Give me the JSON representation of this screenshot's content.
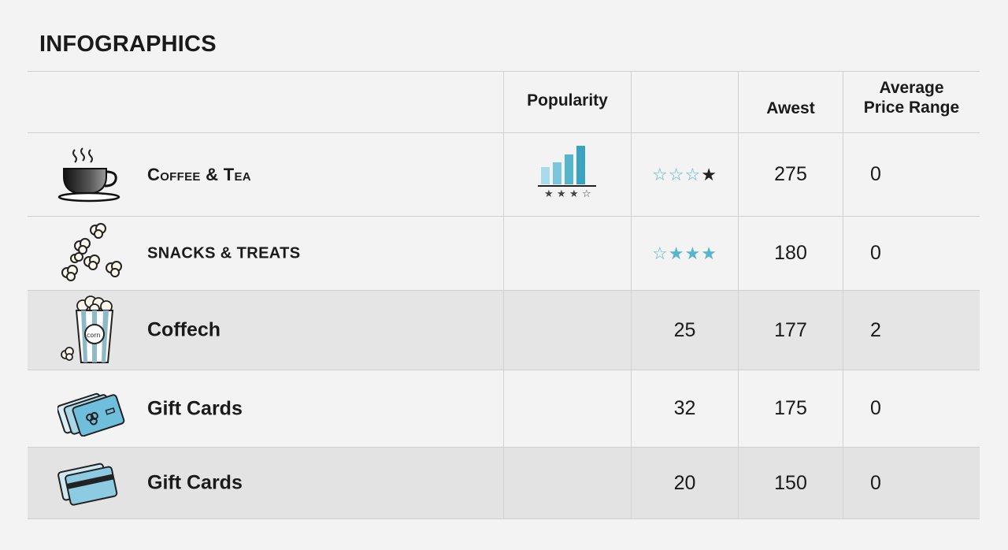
{
  "title": "INFOGRAPHICS",
  "headers": {
    "category": "",
    "popularity": "Popularity",
    "col3": "",
    "awest": "Awest",
    "avg_price_line1": "Average",
    "avg_price_line2": "Price Range"
  },
  "rows": [
    {
      "label": "Coffee & Tea",
      "icon": "coffee-cup-icon",
      "popularity_icon": "bar-chart-icon",
      "rating_stars": "☆☆☆★",
      "col3": "",
      "awest": "275",
      "avg_price": "0"
    },
    {
      "label": "SNACKS & TREATS",
      "icon": "popcorn-pieces-icon",
      "popularity_icon": "",
      "rating_stars": "☆★★★",
      "col3": "",
      "awest": "180",
      "avg_price": "0"
    },
    {
      "label": "Coffech",
      "icon": "popcorn-bucket-icon",
      "popularity_icon": "",
      "rating_stars": "",
      "col3": "25",
      "awest": "177",
      "avg_price": "2"
    },
    {
      "label": "Gift Cards",
      "icon": "gift-cards-icon",
      "popularity_icon": "",
      "rating_stars": "",
      "col3": "32",
      "awest": "175",
      "avg_price": "0"
    },
    {
      "label": "Gift Cards",
      "icon": "credit-cards-icon",
      "popularity_icon": "",
      "rating_stars": "",
      "col3": "20",
      "awest": "150",
      "avg_price": "0"
    }
  ],
  "colors": {
    "accent": "#56b4cc",
    "row_shade": "#e5e5e5",
    "background": "#f3f3f3"
  }
}
